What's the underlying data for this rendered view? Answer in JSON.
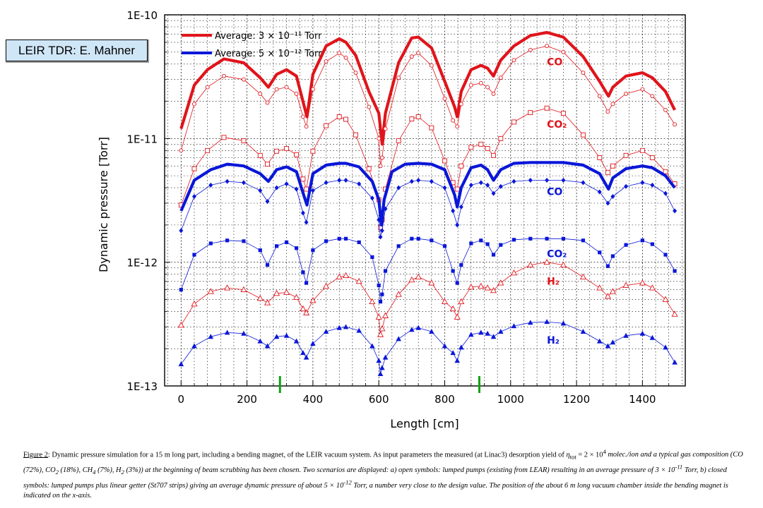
{
  "badge": {
    "text": "LEIR TDR: E. Mahner"
  },
  "chart_data": {
    "type": "line",
    "xlabel": "Length [cm]",
    "ylabel": "Dynamic pressure [Torr]",
    "xlim": [
      -50,
      1530
    ],
    "ylim": [
      1e-13,
      1e-10
    ],
    "y_scale": "log",
    "x_ticks": [
      0,
      200,
      400,
      600,
      800,
      1000,
      1200,
      1400
    ],
    "y_ticks": [
      {
        "value": 1e-13,
        "label": "1E-13"
      },
      {
        "value": 1e-12,
        "label": "1E-12"
      },
      {
        "value": 1e-11,
        "label": "1E-11"
      },
      {
        "value": 1e-10,
        "label": "1E-10"
      }
    ],
    "grid": true,
    "legend_position": "top-left",
    "legend": [
      {
        "label": "Average: 3 × 10⁻¹¹ Torr",
        "color": "#e0141b"
      },
      {
        "label": "Average: 5 × 10⁻¹² Torr",
        "color": "#0a17d8"
      }
    ],
    "magnet_markers_x": [
      300,
      905
    ],
    "annotations": [
      {
        "text": "CO",
        "x": 1110,
        "y": 3.9e-11,
        "color": "#e0141b"
      },
      {
        "text": "CO₂",
        "x": 1110,
        "y": 1.22e-11,
        "color": "#e0141b"
      },
      {
        "text": "CO",
        "x": 1110,
        "y": 3.5e-12,
        "color": "#0a17d8"
      },
      {
        "text": "CO₂",
        "x": 1110,
        "y": 1.1e-12,
        "color": "#0a17d8"
      },
      {
        "text": "H₂",
        "x": 1110,
        "y": 6.6e-13,
        "color": "#e0141b"
      },
      {
        "text": "H₂",
        "x": 1110,
        "y": 2.2e-13,
        "color": "#0a17d8"
      }
    ],
    "series": [
      {
        "color": "#e0141b",
        "style": "thick",
        "marker": "none",
        "x": [
          0,
          40,
          80,
          130,
          190,
          240,
          265,
          290,
          320,
          350,
          372,
          382,
          400,
          440,
          480,
          500,
          530,
          570,
          600,
          610,
          620,
          660,
          700,
          720,
          760,
          800,
          830,
          838,
          850,
          880,
          910,
          930,
          948,
          970,
          1010,
          1060,
          1110,
          1160,
          1220,
          1270,
          1297,
          1310,
          1350,
          1400,
          1430,
          1470,
          1498
        ],
        "y": [
          1.2e-11,
          2.7e-11,
          3.6e-11,
          4.4e-11,
          4.1e-11,
          3.1e-11,
          2.6e-11,
          3.3e-11,
          3.6e-11,
          3.2e-11,
          1.9e-11,
          1.5e-11,
          3.3e-11,
          5.6e-11,
          6.4e-11,
          6e-11,
          4.7e-11,
          2.4e-11,
          1.6e-11,
          9e-12,
          1.6e-11,
          4.1e-11,
          6.5e-11,
          6.6e-11,
          5.4e-11,
          2.9e-11,
          1.8e-11,
          1.5e-11,
          2.4e-11,
          3.6e-11,
          3.9e-11,
          3.7e-11,
          3.2e-11,
          4.3e-11,
          5.6e-11,
          6.8e-11,
          7.2e-11,
          6.6e-11,
          4.6e-11,
          2.9e-11,
          2.2e-11,
          2.6e-11,
          3.2e-11,
          3.4e-11,
          3.1e-11,
          2.4e-11,
          1.7e-11
        ]
      },
      {
        "color": "#e0141b",
        "style": "thin",
        "marker": "circle-open",
        "x": [
          0,
          40,
          80,
          130,
          190,
          240,
          262,
          290,
          320,
          350,
          370,
          380,
          400,
          440,
          480,
          500,
          530,
          570,
          600,
          605,
          610,
          620,
          660,
          700,
          720,
          760,
          800,
          825,
          838,
          850,
          880,
          910,
          930,
          948,
          970,
          1010,
          1060,
          1110,
          1160,
          1220,
          1270,
          1295,
          1310,
          1350,
          1400,
          1430,
          1470,
          1498
        ],
        "y": [
          8e-12,
          1.9e-11,
          2.6e-11,
          3.2e-11,
          3e-11,
          2.3e-11,
          1.95e-11,
          2.5e-11,
          2.6e-11,
          2.3e-11,
          1.5e-11,
          1.25e-11,
          2.5e-11,
          4.2e-11,
          4.9e-11,
          4.5e-11,
          3.4e-11,
          1.8e-11,
          1e-11,
          6e-12,
          7e-12,
          1.2e-11,
          3.1e-11,
          4.6e-11,
          4.9e-11,
          3.9e-11,
          2.1e-11,
          1.4e-11,
          1.25e-11,
          1.9e-11,
          2.7e-11,
          2.8e-11,
          2.6e-11,
          2.3e-11,
          3.1e-11,
          4.3e-11,
          5.2e-11,
          5.6e-11,
          5e-11,
          3.4e-11,
          2.2e-11,
          1.65e-11,
          1.9e-11,
          2.3e-11,
          2.5e-11,
          2.2e-11,
          1.7e-11,
          1.3e-11
        ]
      },
      {
        "color": "#e0141b",
        "style": "thin",
        "marker": "square-open",
        "x": [
          0,
          40,
          80,
          130,
          190,
          240,
          262,
          290,
          320,
          350,
          370,
          380,
          400,
          440,
          480,
          500,
          530,
          570,
          600,
          605,
          610,
          620,
          660,
          700,
          720,
          760,
          800,
          825,
          838,
          850,
          880,
          910,
          930,
          948,
          970,
          1010,
          1060,
          1110,
          1160,
          1220,
          1270,
          1295,
          1310,
          1350,
          1400,
          1430,
          1470,
          1498
        ],
        "y": [
          2.9e-12,
          5.7e-12,
          8e-12,
          1.02e-11,
          9.6e-12,
          7.3e-12,
          6.2e-12,
          7.9e-12,
          8.3e-12,
          7.4e-12,
          4.7e-12,
          3.9e-12,
          7.9e-12,
          1.27e-11,
          1.5e-11,
          1.43e-11,
          1.07e-11,
          5.7e-12,
          3.2e-12,
          1.9e-12,
          2.2e-12,
          3.9e-12,
          9.6e-12,
          1.44e-11,
          1.5e-11,
          1.22e-11,
          6.6e-12,
          4.4e-12,
          3.9e-12,
          6e-12,
          8.5e-12,
          9e-12,
          8.3e-12,
          7.3e-12,
          1e-11,
          1.36e-11,
          1.62e-11,
          1.76e-11,
          1.6e-11,
          1.07e-11,
          7e-12,
          5.3e-12,
          6e-12,
          7.3e-12,
          8e-12,
          7e-12,
          5.4e-12,
          4.3e-12
        ]
      },
      {
        "color": "#0a17d8",
        "style": "thick",
        "marker": "none",
        "x": [
          0,
          40,
          90,
          140,
          190,
          240,
          265,
          290,
          320,
          350,
          372,
          382,
          400,
          440,
          480,
          500,
          540,
          580,
          600,
          608,
          616,
          640,
          680,
          720,
          760,
          800,
          830,
          838,
          850,
          880,
          910,
          930,
          948,
          970,
          1010,
          1060,
          1110,
          1160,
          1220,
          1270,
          1297,
          1310,
          1350,
          1400,
          1430,
          1470,
          1498
        ],
        "y": [
          2.6e-12,
          4.6e-12,
          5.6e-12,
          6.2e-12,
          6e-12,
          5.2e-12,
          4.5e-12,
          5.6e-12,
          5.9e-12,
          5.4e-12,
          3.5e-12,
          2.9e-12,
          5.2e-12,
          6.1e-12,
          6.3e-12,
          6.3e-12,
          5.9e-12,
          4.5e-12,
          3.2e-12,
          2e-12,
          3.2e-12,
          5.4e-12,
          6.2e-12,
          6.3e-12,
          6.2e-12,
          5.6e-12,
          3.5e-12,
          2.8e-12,
          4e-12,
          5.8e-12,
          6.1e-12,
          5.6e-12,
          4.6e-12,
          5.6e-12,
          6.3e-12,
          6.4e-12,
          6.4e-12,
          6.4e-12,
          6.1e-12,
          5.2e-12,
          3.9e-12,
          4.8e-12,
          5.7e-12,
          6e-12,
          5.8e-12,
          5e-12,
          4e-12
        ]
      },
      {
        "color": "#0a17d8",
        "style": "thin",
        "marker": "diamond",
        "x": [
          0,
          40,
          90,
          140,
          190,
          240,
          262,
          290,
          320,
          350,
          370,
          380,
          400,
          440,
          480,
          500,
          540,
          580,
          600,
          605,
          610,
          620,
          660,
          700,
          720,
          760,
          800,
          825,
          838,
          850,
          880,
          910,
          930,
          948,
          970,
          1010,
          1060,
          1110,
          1160,
          1220,
          1270,
          1295,
          1310,
          1350,
          1400,
          1430,
          1470,
          1498
        ],
        "y": [
          1.8e-12,
          3.4e-12,
          4.2e-12,
          4.5e-12,
          4.4e-12,
          3.8e-12,
          3.1e-12,
          4e-12,
          4.3e-12,
          3.9e-12,
          2.5e-12,
          2.1e-12,
          3.8e-12,
          4.4e-12,
          4.6e-12,
          4.6e-12,
          4.3e-12,
          3.3e-12,
          2.2e-12,
          1.6e-12,
          1.8e-12,
          2.7e-12,
          4e-12,
          4.5e-12,
          4.6e-12,
          4.5e-12,
          4e-12,
          2.6e-12,
          2e-12,
          2.8e-12,
          4.2e-12,
          4.4e-12,
          4.2e-12,
          3.6e-12,
          4.1e-12,
          4.5e-12,
          4.6e-12,
          4.6e-12,
          4.6e-12,
          4.4e-12,
          3.7e-12,
          3e-12,
          3.4e-12,
          4.1e-12,
          4.4e-12,
          4.2e-12,
          3.6e-12,
          2.6e-12
        ]
      },
      {
        "color": "#0a17d8",
        "style": "thin",
        "marker": "square",
        "x": [
          0,
          40,
          90,
          140,
          190,
          240,
          262,
          290,
          320,
          350,
          370,
          380,
          400,
          440,
          480,
          500,
          540,
          580,
          600,
          605,
          610,
          620,
          660,
          700,
          720,
          760,
          800,
          825,
          838,
          850,
          880,
          910,
          930,
          948,
          970,
          1010,
          1060,
          1110,
          1160,
          1220,
          1270,
          1295,
          1310,
          1350,
          1400,
          1430,
          1470,
          1498
        ],
        "y": [
          6e-13,
          1.15e-12,
          1.42e-12,
          1.5e-12,
          1.48e-12,
          1.25e-12,
          9.5e-13,
          1.35e-12,
          1.45e-12,
          1.3e-12,
          8.3e-13,
          6.8e-13,
          1.25e-12,
          1.48e-12,
          1.55e-12,
          1.55e-12,
          1.45e-12,
          1.1e-12,
          6.5e-13,
          4.8e-13,
          5.5e-13,
          8.5e-13,
          1.35e-12,
          1.55e-12,
          1.55e-12,
          1.5e-12,
          1.35e-12,
          8.5e-13,
          6.8e-13,
          9.5e-13,
          1.42e-12,
          1.5e-12,
          1.4e-12,
          1.15e-12,
          1.38e-12,
          1.52e-12,
          1.55e-12,
          1.55e-12,
          1.55e-12,
          1.5e-12,
          1.2e-12,
          9.3e-13,
          1.12e-12,
          1.38e-12,
          1.5e-12,
          1.4e-12,
          1.15e-12,
          8.5e-13
        ]
      },
      {
        "color": "#e0141b",
        "style": "thin",
        "marker": "triangle-open",
        "x": [
          0,
          40,
          90,
          140,
          190,
          240,
          262,
          290,
          320,
          350,
          370,
          380,
          400,
          440,
          480,
          500,
          540,
          580,
          600,
          605,
          610,
          620,
          660,
          700,
          720,
          760,
          800,
          825,
          838,
          850,
          880,
          910,
          930,
          948,
          970,
          1010,
          1060,
          1110,
          1160,
          1220,
          1270,
          1295,
          1310,
          1350,
          1400,
          1430,
          1470,
          1498
        ],
        "y": [
          3.1e-13,
          4.6e-13,
          5.8e-13,
          6.2e-13,
          6e-13,
          5.1e-13,
          4.7e-13,
          5.6e-13,
          5.7e-13,
          5.2e-13,
          4.2e-13,
          3.9e-13,
          4.9e-13,
          6.4e-13,
          7.6e-13,
          7.8e-13,
          7e-13,
          4.8e-13,
          3.6e-13,
          2.6e-13,
          2.9e-13,
          3.7e-13,
          5.5e-13,
          7.2e-13,
          7.6e-13,
          6.8e-13,
          4.8e-13,
          4.2e-13,
          3.6e-13,
          4.8e-13,
          6.3e-13,
          6.4e-13,
          6.2e-13,
          5.9e-13,
          6.8e-13,
          8.2e-13,
          9.5e-13,
          1e-12,
          9.5e-13,
          7.6e-13,
          6.2e-13,
          5.3e-13,
          5.8e-13,
          6.5e-13,
          6.8e-13,
          6.2e-13,
          5e-13,
          3.8e-13
        ]
      },
      {
        "color": "#0a17d8",
        "style": "thin",
        "marker": "triangle",
        "x": [
          0,
          40,
          90,
          140,
          190,
          240,
          262,
          290,
          320,
          350,
          370,
          380,
          400,
          440,
          480,
          500,
          540,
          580,
          600,
          605,
          610,
          620,
          660,
          700,
          720,
          760,
          800,
          825,
          838,
          850,
          880,
          910,
          930,
          948,
          970,
          1010,
          1060,
          1110,
          1160,
          1220,
          1270,
          1295,
          1310,
          1350,
          1400,
          1430,
          1470,
          1498
        ],
        "y": [
          1.5e-13,
          2.1e-13,
          2.5e-13,
          2.7e-13,
          2.65e-13,
          2.3e-13,
          2.1e-13,
          2.5e-13,
          2.55e-13,
          2.3e-13,
          1.85e-13,
          1.7e-13,
          2.2e-13,
          2.75e-13,
          2.95e-13,
          3e-13,
          2.8e-13,
          2.1e-13,
          1.6e-13,
          1.25e-13,
          1.4e-13,
          1.7e-13,
          2.4e-13,
          2.85e-13,
          2.95e-13,
          2.75e-13,
          2.1e-13,
          1.85e-13,
          1.6e-13,
          2.05e-13,
          2.6e-13,
          2.7e-13,
          2.65e-13,
          2.5e-13,
          2.75e-13,
          3.05e-13,
          3.25e-13,
          3.3e-13,
          3.2e-13,
          2.75e-13,
          2.3e-13,
          2.1e-13,
          2.25e-13,
          2.55e-13,
          2.65e-13,
          2.45e-13,
          2.05e-13,
          1.55e-13
        ]
      }
    ]
  },
  "caption": {
    "lead": "Figure 2",
    "line1": ": Dynamic pressure simulation for a 15 m long part, including a bending magnet, of the LEIR vacuum system. As input parameters the measured (at Linac3) desorption yield of ",
    "eta": "η",
    "eta_sub": "tot",
    "eq": " = 2 × 10",
    "exp1": "4",
    "line2a": " molec./ion and a typical gas composition (CO (72%), CO",
    "co2_sub": "2",
    "line2b": " (18%), CH",
    "ch4_sub": "4",
    "line2c": " (7%), H",
    "h2_sub": "2",
    "line2d": " (3%)) at the beginning of beam scrubbing has been chosen. Two scenarios are displayed: a) open symbols: lumped pumps (existing from LEAR) resulting in an average pressure of 3 × 10",
    "exp2": "-11",
    "line3": " Torr, b) closed symbols: lumped pumps plus linear getter (St707 strips) giving an average dynamic pressure of about 5 × 10",
    "exp3": "-12",
    "line4": " Torr, a number very close to the design value. The position of the about 6 m long vacuum chamber inside the bending magnet is indicated on the x-axis."
  }
}
